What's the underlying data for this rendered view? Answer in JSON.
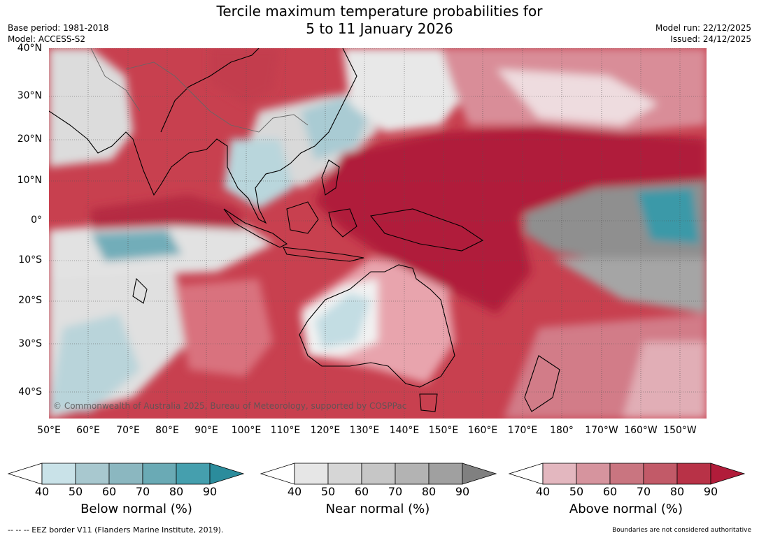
{
  "title_line1": "Tercile maximum temperature probabilities for",
  "title_line2": "5 to 11 January 2026",
  "base_period": "Base period: 1981-2018",
  "model": "Model: ACCESS-S2",
  "model_run": "Model run: 22/12/2025",
  "issued": "Issued: 24/12/2025",
  "latitude_labels": [
    "40°N",
    "30°N",
    "20°N",
    "10°N",
    "0°",
    "10°S",
    "20°S",
    "30°S",
    "40°S"
  ],
  "longitude_labels": [
    "50°E",
    "60°E",
    "70°E",
    "80°E",
    "90°E",
    "100°E",
    "110°E",
    "120°E",
    "130°E",
    "140°E",
    "150°E",
    "160°E",
    "170°E",
    "180°",
    "170°W",
    "160°W",
    "150°W"
  ],
  "credit": "© Commonwealth of Australia 2025, Bureau of Meteorology, supported by COSPPac",
  "colorbars": [
    {
      "title": "Below normal (%)",
      "ticks": [
        "40",
        "50",
        "60",
        "70",
        "80",
        "90"
      ],
      "colors": [
        "#ffffff",
        "#c9e2e8",
        "#a8c8cf",
        "#8bb7c0",
        "#6aaab5",
        "#459fae",
        "#2b8c9c"
      ]
    },
    {
      "title": "Near normal (%)",
      "ticks": [
        "40",
        "50",
        "60",
        "70",
        "80",
        "90"
      ],
      "colors": [
        "#ffffff",
        "#e6e6e6",
        "#d6d6d6",
        "#c6c6c6",
        "#b3b3b3",
        "#a0a0a0",
        "#808080"
      ]
    },
    {
      "title": "Above normal (%)",
      "ticks": [
        "40",
        "50",
        "60",
        "70",
        "80",
        "90"
      ],
      "colors": [
        "#ffffff",
        "#e3b7bf",
        "#d6949e",
        "#c97580",
        "#c25a68",
        "#b83247",
        "#b11c3a"
      ]
    }
  ],
  "footer_left": "-- -- -- EEZ border V11 (Flanders Marine Institute, 2019).",
  "footer_right": "Boundaries are not considered authoritative"
}
